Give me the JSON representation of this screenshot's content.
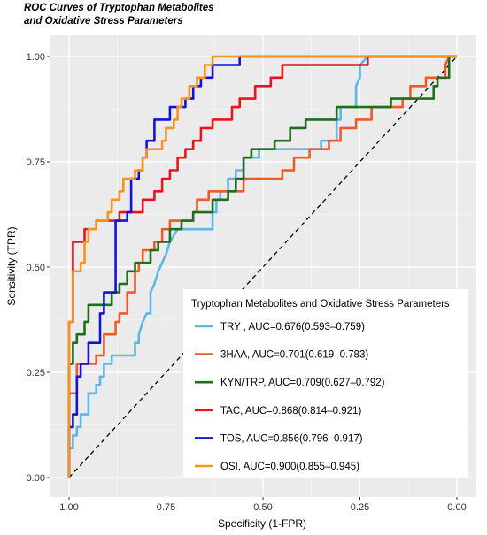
{
  "chart_data": {
    "type": "line",
    "title_line1": "ROC Curves of Tryptophan Metabolites",
    "title_line2": "and Oxidative Stress Parameters",
    "xlabel": "Specificity (1-FPR)",
    "ylabel": "Sensitivity (TPR)",
    "xlim": [
      1.0,
      0.0
    ],
    "ylim": [
      0.0,
      1.0
    ],
    "x_reversed": true,
    "x_ticks": [
      1.0,
      0.75,
      0.5,
      0.25,
      0.0
    ],
    "x_tick_labels": [
      "1.00",
      "0.75",
      "0.50",
      "0.25",
      "0.00"
    ],
    "y_ticks": [
      0.0,
      0.25,
      0.5,
      0.75,
      1.0
    ],
    "y_tick_labels": [
      "0.00",
      "0.25",
      "0.50",
      "0.75",
      "1.00"
    ],
    "grid": true,
    "panel_background": "#ebebeb",
    "diagonal_reference": true,
    "legend": {
      "title": "Tryptophan Metabolites and Oxidative Stress Parameters",
      "position": "bottom-right"
    },
    "series": [
      {
        "name": "TRY , AUC=0.676(0.593–0.759)",
        "color": "#5db7e8",
        "points": [
          [
            1.0,
            0.0
          ],
          [
            1.0,
            0.07
          ],
          [
            0.99,
            0.07
          ],
          [
            0.99,
            0.1
          ],
          [
            0.98,
            0.1
          ],
          [
            0.98,
            0.12
          ],
          [
            0.97,
            0.12
          ],
          [
            0.97,
            0.15
          ],
          [
            0.95,
            0.15
          ],
          [
            0.95,
            0.2
          ],
          [
            0.93,
            0.2
          ],
          [
            0.93,
            0.22
          ],
          [
            0.92,
            0.22
          ],
          [
            0.92,
            0.24
          ],
          [
            0.91,
            0.24
          ],
          [
            0.91,
            0.27
          ],
          [
            0.89,
            0.27
          ],
          [
            0.89,
            0.29
          ],
          [
            0.83,
            0.29
          ],
          [
            0.83,
            0.32
          ],
          [
            0.82,
            0.32
          ],
          [
            0.82,
            0.34
          ],
          [
            0.81,
            0.37
          ],
          [
            0.8,
            0.39
          ],
          [
            0.79,
            0.39
          ],
          [
            0.79,
            0.44
          ],
          [
            0.78,
            0.46
          ],
          [
            0.77,
            0.49
          ],
          [
            0.76,
            0.51
          ],
          [
            0.75,
            0.53
          ],
          [
            0.74,
            0.56
          ],
          [
            0.72,
            0.59
          ],
          [
            0.63,
            0.59
          ],
          [
            0.63,
            0.63
          ],
          [
            0.62,
            0.63
          ],
          [
            0.62,
            0.66
          ],
          [
            0.61,
            0.66
          ],
          [
            0.61,
            0.68
          ],
          [
            0.59,
            0.68
          ],
          [
            0.59,
            0.71
          ],
          [
            0.57,
            0.71
          ],
          [
            0.57,
            0.73
          ],
          [
            0.55,
            0.73
          ],
          [
            0.55,
            0.76
          ],
          [
            0.51,
            0.76
          ],
          [
            0.51,
            0.78
          ],
          [
            0.35,
            0.78
          ],
          [
            0.35,
            0.8
          ],
          [
            0.31,
            0.8
          ],
          [
            0.31,
            0.85
          ],
          [
            0.3,
            0.85
          ],
          [
            0.3,
            0.88
          ],
          [
            0.26,
            0.88
          ],
          [
            0.26,
            0.93
          ],
          [
            0.25,
            0.95
          ],
          [
            0.25,
            0.98
          ],
          [
            0.23,
            1.0
          ],
          [
            0.0,
            1.0
          ]
        ]
      },
      {
        "name": "3HAA, AUC=0.701(0.619–0.783)",
        "color": "#f05a24",
        "points": [
          [
            1.0,
            0.0
          ],
          [
            1.0,
            0.2
          ],
          [
            0.98,
            0.2
          ],
          [
            0.98,
            0.27
          ],
          [
            0.93,
            0.27
          ],
          [
            0.93,
            0.29
          ],
          [
            0.91,
            0.29
          ],
          [
            0.91,
            0.34
          ],
          [
            0.88,
            0.34
          ],
          [
            0.88,
            0.37
          ],
          [
            0.87,
            0.37
          ],
          [
            0.87,
            0.39
          ],
          [
            0.85,
            0.39
          ],
          [
            0.85,
            0.44
          ],
          [
            0.83,
            0.44
          ],
          [
            0.83,
            0.49
          ],
          [
            0.82,
            0.49
          ],
          [
            0.82,
            0.51
          ],
          [
            0.81,
            0.51
          ],
          [
            0.81,
            0.54
          ],
          [
            0.78,
            0.54
          ],
          [
            0.78,
            0.56
          ],
          [
            0.76,
            0.56
          ],
          [
            0.76,
            0.59
          ],
          [
            0.74,
            0.59
          ],
          [
            0.74,
            0.61
          ],
          [
            0.68,
            0.61
          ],
          [
            0.68,
            0.63
          ],
          [
            0.67,
            0.63
          ],
          [
            0.67,
            0.66
          ],
          [
            0.64,
            0.66
          ],
          [
            0.64,
            0.68
          ],
          [
            0.55,
            0.68
          ],
          [
            0.55,
            0.71
          ],
          [
            0.45,
            0.71
          ],
          [
            0.45,
            0.73
          ],
          [
            0.42,
            0.73
          ],
          [
            0.42,
            0.76
          ],
          [
            0.38,
            0.76
          ],
          [
            0.38,
            0.78
          ],
          [
            0.33,
            0.78
          ],
          [
            0.33,
            0.8
          ],
          [
            0.3,
            0.8
          ],
          [
            0.3,
            0.83
          ],
          [
            0.26,
            0.83
          ],
          [
            0.26,
            0.85
          ],
          [
            0.22,
            0.85
          ],
          [
            0.22,
            0.88
          ],
          [
            0.14,
            0.88
          ],
          [
            0.14,
            0.9
          ],
          [
            0.12,
            0.9
          ],
          [
            0.12,
            0.93
          ],
          [
            0.08,
            0.93
          ],
          [
            0.08,
            0.95
          ],
          [
            0.03,
            0.95
          ],
          [
            0.03,
            0.98
          ],
          [
            0.02,
            1.0
          ],
          [
            0.0,
            1.0
          ]
        ]
      },
      {
        "name": "KYN/TRP, AUC=0.709(0.627–0.792)",
        "color": "#1f6e1f",
        "points": [
          [
            1.0,
            0.0
          ],
          [
            1.0,
            0.27
          ],
          [
            0.99,
            0.27
          ],
          [
            0.99,
            0.32
          ],
          [
            0.98,
            0.32
          ],
          [
            0.98,
            0.34
          ],
          [
            0.96,
            0.34
          ],
          [
            0.96,
            0.37
          ],
          [
            0.95,
            0.37
          ],
          [
            0.95,
            0.41
          ],
          [
            0.89,
            0.41
          ],
          [
            0.89,
            0.44
          ],
          [
            0.87,
            0.44
          ],
          [
            0.87,
            0.46
          ],
          [
            0.85,
            0.46
          ],
          [
            0.85,
            0.49
          ],
          [
            0.83,
            0.49
          ],
          [
            0.83,
            0.51
          ],
          [
            0.79,
            0.51
          ],
          [
            0.79,
            0.54
          ],
          [
            0.77,
            0.54
          ],
          [
            0.77,
            0.56
          ],
          [
            0.74,
            0.56
          ],
          [
            0.74,
            0.59
          ],
          [
            0.71,
            0.59
          ],
          [
            0.71,
            0.61
          ],
          [
            0.68,
            0.61
          ],
          [
            0.68,
            0.63
          ],
          [
            0.63,
            0.63
          ],
          [
            0.63,
            0.66
          ],
          [
            0.59,
            0.66
          ],
          [
            0.59,
            0.68
          ],
          [
            0.57,
            0.68
          ],
          [
            0.57,
            0.71
          ],
          [
            0.55,
            0.71
          ],
          [
            0.55,
            0.76
          ],
          [
            0.53,
            0.76
          ],
          [
            0.53,
            0.78
          ],
          [
            0.47,
            0.78
          ],
          [
            0.47,
            0.8
          ],
          [
            0.43,
            0.8
          ],
          [
            0.43,
            0.83
          ],
          [
            0.39,
            0.83
          ],
          [
            0.39,
            0.85
          ],
          [
            0.31,
            0.85
          ],
          [
            0.31,
            0.88
          ],
          [
            0.17,
            0.88
          ],
          [
            0.17,
            0.9
          ],
          [
            0.06,
            0.9
          ],
          [
            0.06,
            0.93
          ],
          [
            0.05,
            0.93
          ],
          [
            0.05,
            0.95
          ],
          [
            0.02,
            0.95
          ],
          [
            0.02,
            1.0
          ],
          [
            0.0,
            1.0
          ]
        ]
      },
      {
        "name": "TAC, AUC=0.868(0.814–0.921)",
        "color": "#e8141b",
        "points": [
          [
            1.0,
            0.0
          ],
          [
            1.0,
            0.37
          ],
          [
            0.99,
            0.37
          ],
          [
            0.99,
            0.56
          ],
          [
            0.96,
            0.56
          ],
          [
            0.96,
            0.59
          ],
          [
            0.93,
            0.59
          ],
          [
            0.93,
            0.61
          ],
          [
            0.87,
            0.61
          ],
          [
            0.87,
            0.63
          ],
          [
            0.81,
            0.63
          ],
          [
            0.81,
            0.66
          ],
          [
            0.78,
            0.66
          ],
          [
            0.78,
            0.68
          ],
          [
            0.76,
            0.68
          ],
          [
            0.76,
            0.71
          ],
          [
            0.74,
            0.71
          ],
          [
            0.74,
            0.73
          ],
          [
            0.72,
            0.73
          ],
          [
            0.72,
            0.76
          ],
          [
            0.7,
            0.76
          ],
          [
            0.7,
            0.78
          ],
          [
            0.68,
            0.78
          ],
          [
            0.68,
            0.8
          ],
          [
            0.66,
            0.8
          ],
          [
            0.66,
            0.83
          ],
          [
            0.63,
            0.83
          ],
          [
            0.63,
            0.85
          ],
          [
            0.58,
            0.85
          ],
          [
            0.58,
            0.88
          ],
          [
            0.56,
            0.88
          ],
          [
            0.56,
            0.9
          ],
          [
            0.52,
            0.9
          ],
          [
            0.52,
            0.93
          ],
          [
            0.48,
            0.93
          ],
          [
            0.48,
            0.95
          ],
          [
            0.45,
            0.95
          ],
          [
            0.45,
            0.98
          ],
          [
            0.23,
            0.98
          ],
          [
            0.23,
            1.0
          ],
          [
            0.0,
            1.0
          ]
        ]
      },
      {
        "name": "TOS, AUC=0.856(0.796–0.917)",
        "color": "#1313d8",
        "points": [
          [
            1.0,
            0.0
          ],
          [
            1.0,
            0.12
          ],
          [
            0.99,
            0.12
          ],
          [
            0.99,
            0.15
          ],
          [
            0.98,
            0.15
          ],
          [
            0.98,
            0.24
          ],
          [
            0.97,
            0.24
          ],
          [
            0.97,
            0.27
          ],
          [
            0.95,
            0.27
          ],
          [
            0.95,
            0.32
          ],
          [
            0.92,
            0.32
          ],
          [
            0.92,
            0.39
          ],
          [
            0.91,
            0.39
          ],
          [
            0.91,
            0.44
          ],
          [
            0.88,
            0.44
          ],
          [
            0.88,
            0.61
          ],
          [
            0.85,
            0.61
          ],
          [
            0.85,
            0.63
          ],
          [
            0.84,
            0.63
          ],
          [
            0.84,
            0.71
          ],
          [
            0.82,
            0.71
          ],
          [
            0.82,
            0.73
          ],
          [
            0.81,
            0.73
          ],
          [
            0.81,
            0.76
          ],
          [
            0.8,
            0.76
          ],
          [
            0.8,
            0.8
          ],
          [
            0.78,
            0.8
          ],
          [
            0.78,
            0.85
          ],
          [
            0.74,
            0.85
          ],
          [
            0.74,
            0.88
          ],
          [
            0.7,
            0.88
          ],
          [
            0.7,
            0.9
          ],
          [
            0.68,
            0.9
          ],
          [
            0.68,
            0.93
          ],
          [
            0.66,
            0.93
          ],
          [
            0.66,
            0.95
          ],
          [
            0.63,
            0.95
          ],
          [
            0.63,
            0.98
          ],
          [
            0.56,
            0.98
          ],
          [
            0.56,
            1.0
          ],
          [
            0.0,
            1.0
          ]
        ]
      },
      {
        "name": "OSI, AUC=0.900(0.855–0.945)",
        "color": "#f7941d",
        "points": [
          [
            1.0,
            0.0
          ],
          [
            1.0,
            0.37
          ],
          [
            0.99,
            0.37
          ],
          [
            0.99,
            0.49
          ],
          [
            0.97,
            0.49
          ],
          [
            0.97,
            0.51
          ],
          [
            0.96,
            0.51
          ],
          [
            0.96,
            0.56
          ],
          [
            0.95,
            0.56
          ],
          [
            0.95,
            0.59
          ],
          [
            0.93,
            0.59
          ],
          [
            0.93,
            0.61
          ],
          [
            0.9,
            0.61
          ],
          [
            0.9,
            0.63
          ],
          [
            0.89,
            0.63
          ],
          [
            0.89,
            0.66
          ],
          [
            0.87,
            0.66
          ],
          [
            0.87,
            0.68
          ],
          [
            0.86,
            0.68
          ],
          [
            0.86,
            0.71
          ],
          [
            0.83,
            0.71
          ],
          [
            0.83,
            0.73
          ],
          [
            0.81,
            0.73
          ],
          [
            0.81,
            0.76
          ],
          [
            0.8,
            0.76
          ],
          [
            0.8,
            0.78
          ],
          [
            0.76,
            0.78
          ],
          [
            0.76,
            0.8
          ],
          [
            0.75,
            0.8
          ],
          [
            0.75,
            0.83
          ],
          [
            0.73,
            0.83
          ],
          [
            0.73,
            0.85
          ],
          [
            0.72,
            0.85
          ],
          [
            0.72,
            0.88
          ],
          [
            0.71,
            0.88
          ],
          [
            0.71,
            0.9
          ],
          [
            0.69,
            0.9
          ],
          [
            0.69,
            0.93
          ],
          [
            0.67,
            0.93
          ],
          [
            0.67,
            0.95
          ],
          [
            0.65,
            0.95
          ],
          [
            0.65,
            0.98
          ],
          [
            0.63,
            0.98
          ],
          [
            0.63,
            1.0
          ],
          [
            0.0,
            1.0
          ]
        ]
      }
    ]
  }
}
